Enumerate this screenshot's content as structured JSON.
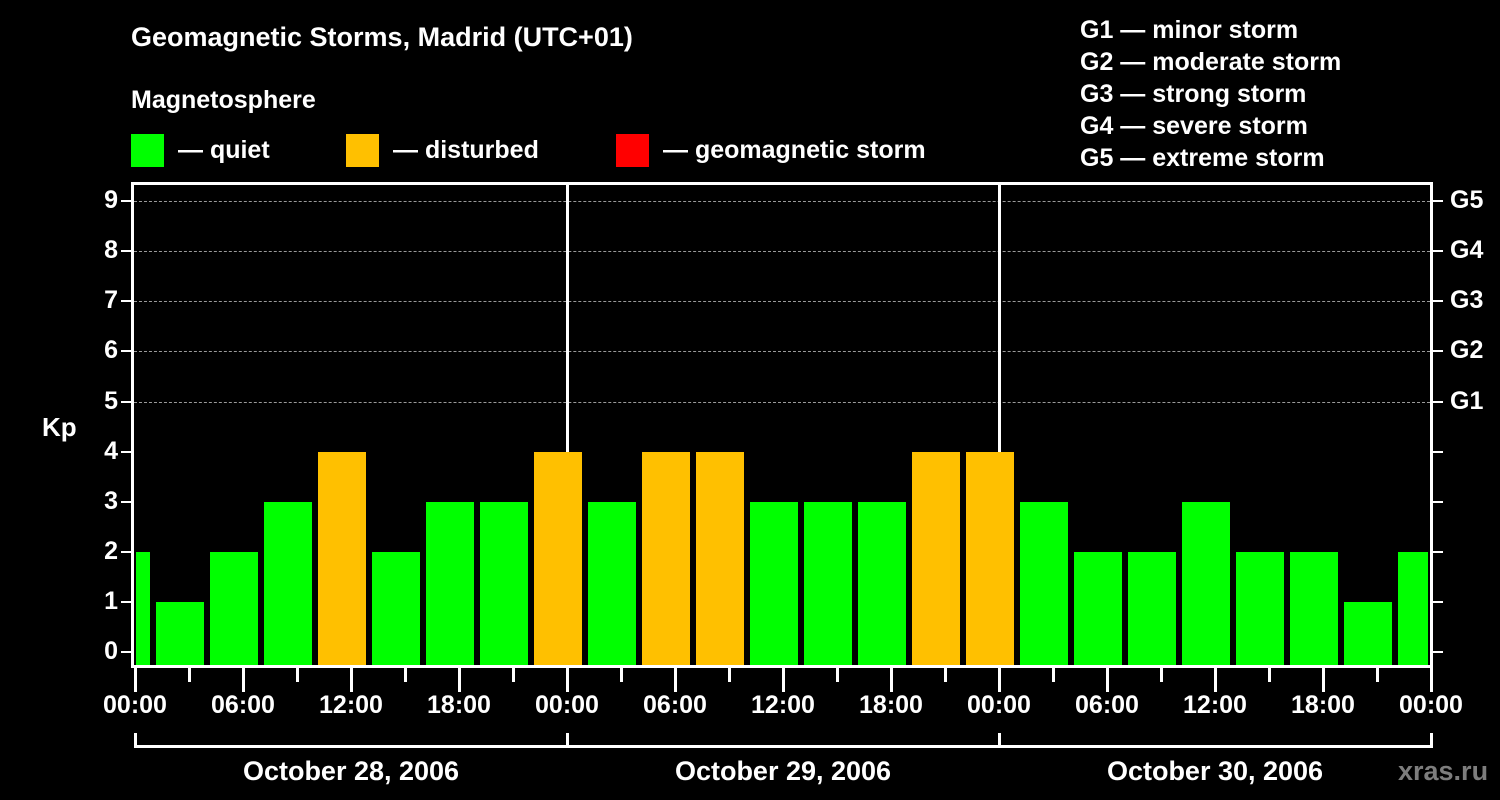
{
  "title": "Geomagnetic Storms, Madrid (UTC+01)",
  "subtitle": "Magnetosphere",
  "legend": [
    {
      "label": "— quiet",
      "color": "#00ff00"
    },
    {
      "label": "— disturbed",
      "color": "#ffc000"
    },
    {
      "label": "— geomagnetic storm",
      "color": "#ff0000"
    }
  ],
  "storm_scale": [
    "G1 — minor storm",
    "G2 — moderate storm",
    "G3 — strong storm",
    "G4 — severe storm",
    "G5 — extreme storm"
  ],
  "watermark": "xras.ru",
  "chart_data": {
    "type": "bar",
    "title": "Geomagnetic Storms, Madrid (UTC+01)",
    "ylabel": "Kp",
    "ylim": [
      0,
      9
    ],
    "yticks": [
      0,
      1,
      2,
      3,
      4,
      5,
      6,
      7,
      8,
      9
    ],
    "right_axis_labels": [
      {
        "kp": 5,
        "label": "G1"
      },
      {
        "kp": 6,
        "label": "G2"
      },
      {
        "kp": 7,
        "label": "G3"
      },
      {
        "kp": 8,
        "label": "G4"
      },
      {
        "kp": 9,
        "label": "G5"
      }
    ],
    "xtick_labels": [
      "00:00",
      "06:00",
      "12:00",
      "18:00",
      "00:00",
      "06:00",
      "12:00",
      "18:00",
      "00:00",
      "06:00",
      "12:00",
      "18:00",
      "00:00"
    ],
    "days": [
      "October 28, 2006",
      "October 29, 2006",
      "October 30, 2006"
    ],
    "interval_hours": 3,
    "timezone_offset_hours": 1,
    "grid": "dashed horizontal at Kp 5-9",
    "categories": [
      "00:00-01:00",
      "01:00-04:00",
      "04:00-07:00",
      "07:00-10:00",
      "10:00-13:00",
      "13:00-16:00",
      "16:00-19:00",
      "19:00-22:00",
      "22:00-01:00",
      "01:00-04:00",
      "04:00-07:00",
      "07:00-10:00",
      "10:00-13:00",
      "13:00-16:00",
      "16:00-19:00",
      "19:00-22:00",
      "22:00-01:00",
      "01:00-04:00",
      "04:00-07:00",
      "07:00-10:00",
      "10:00-13:00",
      "13:00-16:00",
      "16:00-19:00",
      "19:00-22:00",
      "22:00-24:00"
    ],
    "values": [
      2,
      1,
      2,
      3,
      4,
      2,
      3,
      3,
      4,
      3,
      4,
      4,
      3,
      3,
      3,
      4,
      4,
      3,
      2,
      2,
      3,
      2,
      2,
      1,
      2
    ],
    "status": [
      "quiet",
      "quiet",
      "quiet",
      "quiet",
      "disturbed",
      "quiet",
      "quiet",
      "quiet",
      "disturbed",
      "quiet",
      "disturbed",
      "disturbed",
      "quiet",
      "quiet",
      "quiet",
      "disturbed",
      "disturbed",
      "quiet",
      "quiet",
      "quiet",
      "quiet",
      "quiet",
      "quiet",
      "quiet",
      "quiet"
    ],
    "colors": {
      "quiet": "#00ff00",
      "disturbed": "#ffc000",
      "storm": "#ff0000"
    }
  }
}
